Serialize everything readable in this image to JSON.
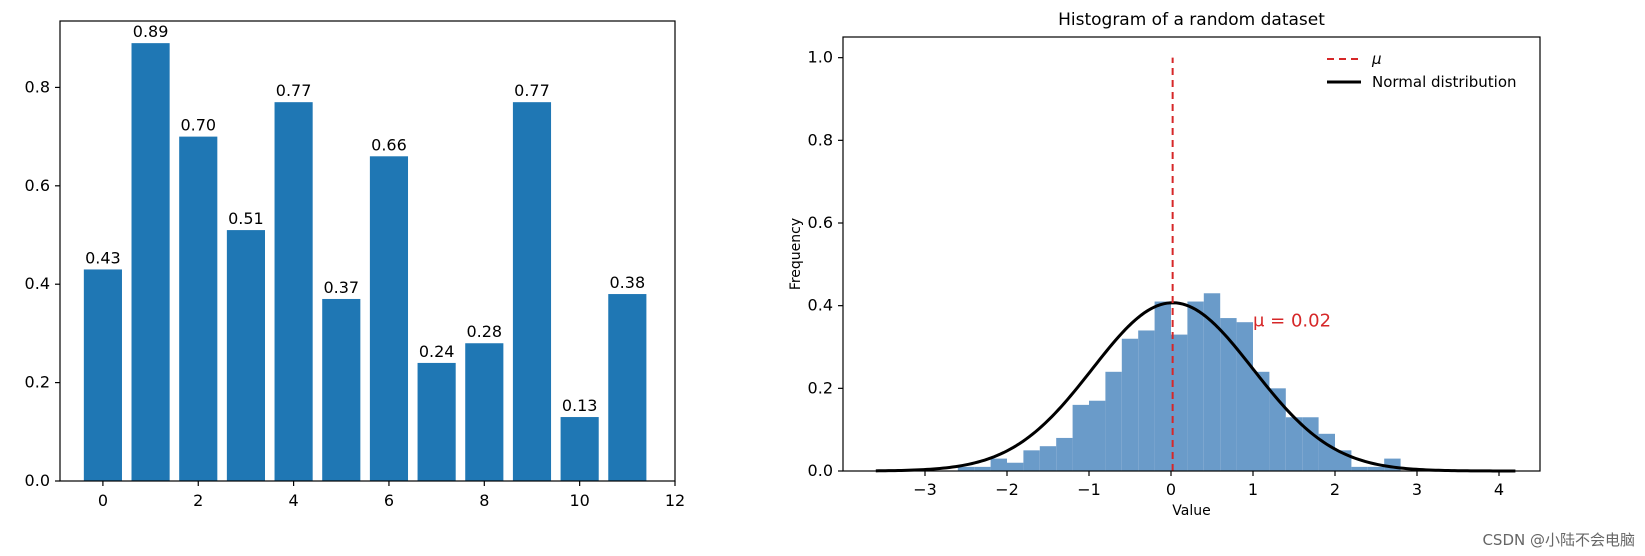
{
  "chart_data": [
    {
      "type": "bar",
      "title": "",
      "xlabel": "",
      "ylabel": "",
      "x": [
        0,
        1,
        2,
        3,
        4,
        5,
        6,
        7,
        8,
        9,
        10,
        11
      ],
      "values": [
        0.43,
        0.89,
        0.7,
        0.51,
        0.77,
        0.37,
        0.66,
        0.24,
        0.28,
        0.77,
        0.13,
        0.38
      ],
      "value_labels": [
        "0.43",
        "0.89",
        "0.70",
        "0.51",
        "0.77",
        "0.37",
        "0.66",
        "0.24",
        "0.28",
        "0.77",
        "0.13",
        "0.38"
      ],
      "xlim": [
        -0.9,
        12
      ],
      "ylim": [
        0,
        0.935
      ],
      "xticks": [
        0,
        2,
        4,
        6,
        8,
        10,
        12
      ],
      "xtick_labels": [
        "0",
        "2",
        "4",
        "6",
        "8",
        "10",
        "12"
      ],
      "yticks": [
        0.0,
        0.2,
        0.4,
        0.6,
        0.8
      ],
      "ytick_labels": [
        "0.0",
        "0.2",
        "0.4",
        "0.6",
        "0.8"
      ],
      "bar_color": "#1f77b4",
      "grid": false
    },
    {
      "type": "histogram",
      "title": "Histogram of a random dataset",
      "xlabel": "Value",
      "ylabel": "Frequency",
      "bin_start": -3.6,
      "bin_width": 0.2,
      "frequencies": [
        0.0,
        0.0,
        0.0,
        0.0,
        0.0,
        0.01,
        0.01,
        0.03,
        0.02,
        0.05,
        0.06,
        0.08,
        0.16,
        0.17,
        0.24,
        0.32,
        0.34,
        0.41,
        0.33,
        0.41,
        0.43,
        0.37,
        0.36,
        0.24,
        0.2,
        0.13,
        0.13,
        0.09,
        0.05,
        0.01,
        0.01,
        0.03
      ],
      "mean": 0.02,
      "normal_curve": {
        "mu": 0.02,
        "sigma": 0.98,
        "x_range": [
          -3.6,
          4.2
        ]
      },
      "xlim": [
        -4.0,
        4.5
      ],
      "ylim": [
        0,
        1.05
      ],
      "xticks": [
        -3,
        -2,
        -1,
        0,
        1,
        2,
        3,
        4
      ],
      "xtick_labels": [
        "−3",
        "−2",
        "−1",
        "0",
        "1",
        "2",
        "3",
        "4"
      ],
      "yticks": [
        0.0,
        0.2,
        0.4,
        0.6,
        0.8,
        1.0
      ],
      "ytick_labels": [
        "0.0",
        "0.2",
        "0.4",
        "0.6",
        "0.8",
        "1.0"
      ],
      "annotation": {
        "text": "μ = 0.02",
        "x": 1.0,
        "y": 0.35
      },
      "mean_line": {
        "x": 0.02,
        "y_range": [
          0,
          1.0
        ]
      },
      "legend": {
        "placement": "top-right",
        "entries": [
          {
            "label": "μ",
            "style": "dashed",
            "color": "#d62728"
          },
          {
            "label": "Normal distribution",
            "style": "solid",
            "color": "#000000"
          }
        ]
      },
      "hist_color": "#6a9bc9",
      "grid": false
    }
  ],
  "watermark": "CSDN @小陆不会电脑"
}
